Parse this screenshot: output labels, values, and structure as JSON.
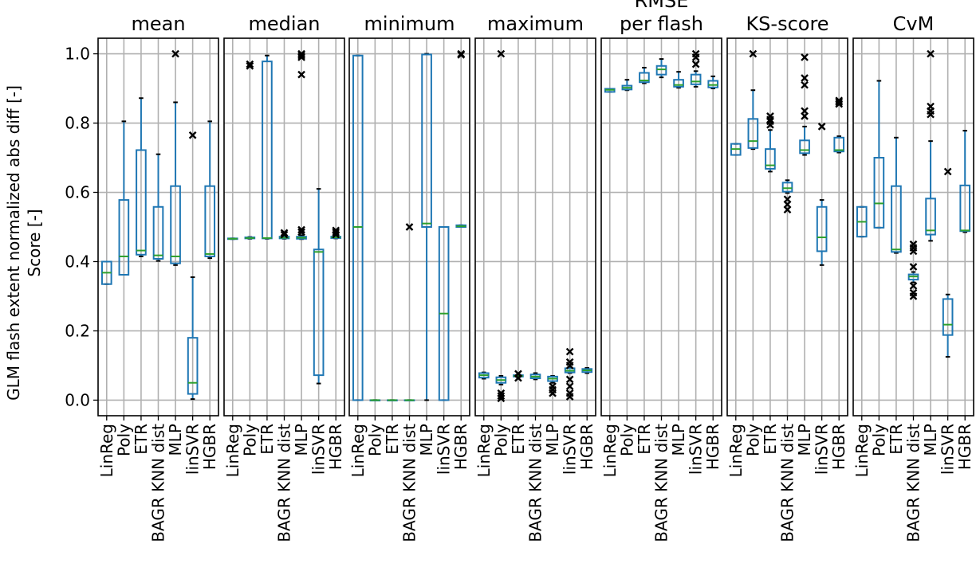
{
  "chart_data": {
    "type": "box",
    "ylabel_lines": [
      "GLM flash extent normalized abs diff [-]",
      "Score [-]"
    ],
    "ylim": [
      -0.045,
      1.045
    ],
    "yticks": [
      0.0,
      0.2,
      0.4,
      0.6,
      0.8,
      1.0
    ],
    "ytick_labels": [
      "0.0",
      "0.2",
      "0.4",
      "0.6",
      "0.8",
      "1.0"
    ],
    "grid": true,
    "categories": [
      "LinReg",
      "Poly",
      "ETR",
      "BAGR KNN dist",
      "MLP",
      "linSVR",
      "HGBR"
    ],
    "colors": {
      "box": "#1f77b4",
      "median": "#2ca02c",
      "outlier": "#000000",
      "grid": "#b0b0b0"
    },
    "panels": [
      {
        "title": [
          "mean"
        ],
        "boxes": [
          {
            "whislo": 0.335,
            "q1": 0.335,
            "med": 0.368,
            "q3": 0.4,
            "whishi": 0.4,
            "fliers": []
          },
          {
            "whislo": 0.362,
            "q1": 0.362,
            "med": 0.415,
            "q3": 0.578,
            "whishi": 0.805,
            "fliers": []
          },
          {
            "whislo": 0.415,
            "q1": 0.42,
            "med": 0.432,
            "q3": 0.722,
            "whishi": 0.872,
            "fliers": []
          },
          {
            "whislo": 0.402,
            "q1": 0.408,
            "med": 0.418,
            "q3": 0.558,
            "whishi": 0.71,
            "fliers": []
          },
          {
            "whislo": 0.39,
            "q1": 0.395,
            "med": 0.415,
            "q3": 0.618,
            "whishi": 0.86,
            "fliers": [
              1.0
            ]
          },
          {
            "whislo": 0.003,
            "q1": 0.018,
            "med": 0.05,
            "q3": 0.18,
            "whishi": 0.355,
            "fliers": [
              0.765
            ]
          },
          {
            "whislo": 0.41,
            "q1": 0.415,
            "med": 0.422,
            "q3": 0.618,
            "whishi": 0.805,
            "fliers": []
          }
        ]
      },
      {
        "title": [
          "median"
        ],
        "boxes": [
          {
            "whislo": 0.465,
            "q1": 0.465,
            "med": 0.466,
            "q3": 0.467,
            "whishi": 0.467,
            "fliers": []
          },
          {
            "whislo": 0.466,
            "q1": 0.467,
            "med": 0.468,
            "q3": 0.47,
            "whishi": 0.471,
            "fliers": [
              0.965,
              0.97
            ]
          },
          {
            "whislo": 0.466,
            "q1": 0.467,
            "med": 0.468,
            "q3": 0.978,
            "whishi": 0.995,
            "fliers": []
          },
          {
            "whislo": 0.466,
            "q1": 0.467,
            "med": 0.469,
            "q3": 0.472,
            "whishi": 0.474,
            "fliers": [
              0.478,
              0.483
            ]
          },
          {
            "whislo": 0.465,
            "q1": 0.466,
            "med": 0.469,
            "q3": 0.472,
            "whishi": 0.476,
            "fliers": [
              0.485,
              0.492,
              0.94,
              0.99,
              0.995,
              1.0
            ]
          },
          {
            "whislo": 0.048,
            "q1": 0.072,
            "med": 0.428,
            "q3": 0.435,
            "whishi": 0.61,
            "fliers": []
          },
          {
            "whislo": 0.467,
            "q1": 0.468,
            "med": 0.47,
            "q3": 0.472,
            "whishi": 0.474,
            "fliers": [
              0.478,
              0.484,
              0.49
            ]
          }
        ]
      },
      {
        "title": [
          "minimum"
        ],
        "boxes": [
          {
            "whislo": 0.0,
            "q1": 0.0,
            "med": 0.5,
            "q3": 0.995,
            "whishi": 0.995,
            "fliers": []
          },
          {
            "whislo": 0.0,
            "q1": 0.0,
            "med": 0.0,
            "q3": 0.0,
            "whishi": 0.0,
            "fliers": []
          },
          {
            "whislo": 0.0,
            "q1": 0.0,
            "med": 0.0,
            "q3": 0.0,
            "whishi": 0.0,
            "fliers": []
          },
          {
            "whislo": 0.0,
            "q1": 0.0,
            "med": 0.0,
            "q3": 0.0,
            "whishi": 0.0,
            "fliers": [
              0.5
            ]
          },
          {
            "whislo": 0.0,
            "q1": 0.5,
            "med": 0.51,
            "q3": 0.998,
            "whishi": 1.0,
            "fliers": []
          },
          {
            "whislo": 0.0,
            "q1": 0.0,
            "med": 0.25,
            "q3": 0.5,
            "whishi": 0.5,
            "fliers": []
          },
          {
            "whislo": 0.5,
            "q1": 0.5,
            "med": 0.502,
            "q3": 0.505,
            "whishi": 0.505,
            "fliers": [
              0.997,
              1.0
            ]
          }
        ]
      },
      {
        "title": [
          "maximum"
        ],
        "boxes": [
          {
            "whislo": 0.062,
            "q1": 0.065,
            "med": 0.072,
            "q3": 0.078,
            "whishi": 0.08,
            "fliers": []
          },
          {
            "whislo": 0.045,
            "q1": 0.05,
            "med": 0.058,
            "q3": 0.066,
            "whishi": 0.07,
            "fliers": [
              0.005,
              0.012,
              0.02,
              1.0
            ]
          },
          {
            "whislo": 0.066,
            "q1": 0.068,
            "med": 0.07,
            "q3": 0.072,
            "whishi": 0.074,
            "fliers": [
              0.064,
              0.076
            ]
          },
          {
            "whislo": 0.06,
            "q1": 0.063,
            "med": 0.068,
            "q3": 0.074,
            "whishi": 0.078,
            "fliers": []
          },
          {
            "whislo": 0.05,
            "q1": 0.055,
            "med": 0.062,
            "q3": 0.068,
            "whishi": 0.07,
            "fliers": [
              0.02,
              0.03,
              0.04
            ]
          },
          {
            "whislo": 0.078,
            "q1": 0.08,
            "med": 0.085,
            "q3": 0.092,
            "whishi": 0.095,
            "fliers": [
              0.01,
              0.02,
              0.04,
              0.06,
              0.1,
              0.11,
              0.14
            ]
          },
          {
            "whislo": 0.078,
            "q1": 0.081,
            "med": 0.086,
            "q3": 0.09,
            "whishi": 0.093,
            "fliers": []
          }
        ]
      },
      {
        "title": [
          "RMSE",
          "per flash"
        ],
        "boxes": [
          {
            "whislo": 0.89,
            "q1": 0.89,
            "med": 0.896,
            "q3": 0.899,
            "whishi": 0.899,
            "fliers": []
          },
          {
            "whislo": 0.895,
            "q1": 0.897,
            "med": 0.902,
            "q3": 0.908,
            "whishi": 0.925,
            "fliers": []
          },
          {
            "whislo": 0.915,
            "q1": 0.918,
            "med": 0.923,
            "q3": 0.945,
            "whishi": 0.96,
            "fliers": []
          },
          {
            "whislo": 0.932,
            "q1": 0.94,
            "med": 0.955,
            "q3": 0.965,
            "whishi": 0.985,
            "fliers": []
          },
          {
            "whislo": 0.902,
            "q1": 0.905,
            "med": 0.91,
            "q3": 0.925,
            "whishi": 0.948,
            "fliers": []
          },
          {
            "whislo": 0.905,
            "q1": 0.912,
            "med": 0.92,
            "q3": 0.94,
            "whishi": 0.95,
            "fliers": [
              0.97,
              0.99,
              1.0
            ]
          },
          {
            "whislo": 0.9,
            "q1": 0.903,
            "med": 0.91,
            "q3": 0.922,
            "whishi": 0.935,
            "fliers": []
          }
        ]
      },
      {
        "title": [
          "KS-score"
        ],
        "boxes": [
          {
            "whislo": 0.708,
            "q1": 0.708,
            "med": 0.725,
            "q3": 0.74,
            "whishi": 0.74,
            "fliers": []
          },
          {
            "whislo": 0.725,
            "q1": 0.728,
            "med": 0.748,
            "q3": 0.812,
            "whishi": 0.895,
            "fliers": [
              1.0
            ]
          },
          {
            "whislo": 0.66,
            "q1": 0.668,
            "med": 0.678,
            "q3": 0.725,
            "whishi": 0.78,
            "fliers": [
              0.795,
              0.805,
              0.81,
              0.82
            ]
          },
          {
            "whislo": 0.598,
            "q1": 0.602,
            "med": 0.612,
            "q3": 0.628,
            "whishi": 0.635,
            "fliers": [
              0.55,
              0.565,
              0.58
            ]
          },
          {
            "whislo": 0.708,
            "q1": 0.713,
            "med": 0.722,
            "q3": 0.75,
            "whishi": 0.79,
            "fliers": [
              0.82,
              0.835,
              0.91,
              0.93,
              0.99
            ]
          },
          {
            "whislo": 0.39,
            "q1": 0.43,
            "med": 0.47,
            "q3": 0.558,
            "whishi": 0.578,
            "fliers": [
              0.79
            ]
          },
          {
            "whislo": 0.715,
            "q1": 0.718,
            "med": 0.722,
            "q3": 0.758,
            "whishi": 0.762,
            "fliers": [
              0.855,
              0.86,
              0.865
            ]
          }
        ]
      },
      {
        "title": [
          "CvM"
        ],
        "boxes": [
          {
            "whislo": 0.472,
            "q1": 0.472,
            "med": 0.515,
            "q3": 0.558,
            "whishi": 0.558,
            "fliers": []
          },
          {
            "whislo": 0.498,
            "q1": 0.498,
            "med": 0.568,
            "q3": 0.7,
            "whishi": 0.922,
            "fliers": []
          },
          {
            "whislo": 0.425,
            "q1": 0.428,
            "med": 0.435,
            "q3": 0.618,
            "whishi": 0.758,
            "fliers": []
          },
          {
            "whislo": 0.34,
            "q1": 0.348,
            "med": 0.357,
            "q3": 0.363,
            "whishi": 0.37,
            "fliers": [
              0.3,
              0.31,
              0.33,
              0.385,
              0.43,
              0.44,
              0.45
            ]
          },
          {
            "whislo": 0.46,
            "q1": 0.478,
            "med": 0.49,
            "q3": 0.582,
            "whishi": 0.748,
            "fliers": [
              0.825,
              0.835,
              0.848,
              1.0
            ]
          },
          {
            "whislo": 0.125,
            "q1": 0.188,
            "med": 0.218,
            "q3": 0.292,
            "whishi": 0.305,
            "fliers": [
              0.66
            ]
          },
          {
            "whislo": 0.485,
            "q1": 0.488,
            "med": 0.49,
            "q3": 0.62,
            "whishi": 0.778,
            "fliers": []
          }
        ]
      }
    ]
  }
}
